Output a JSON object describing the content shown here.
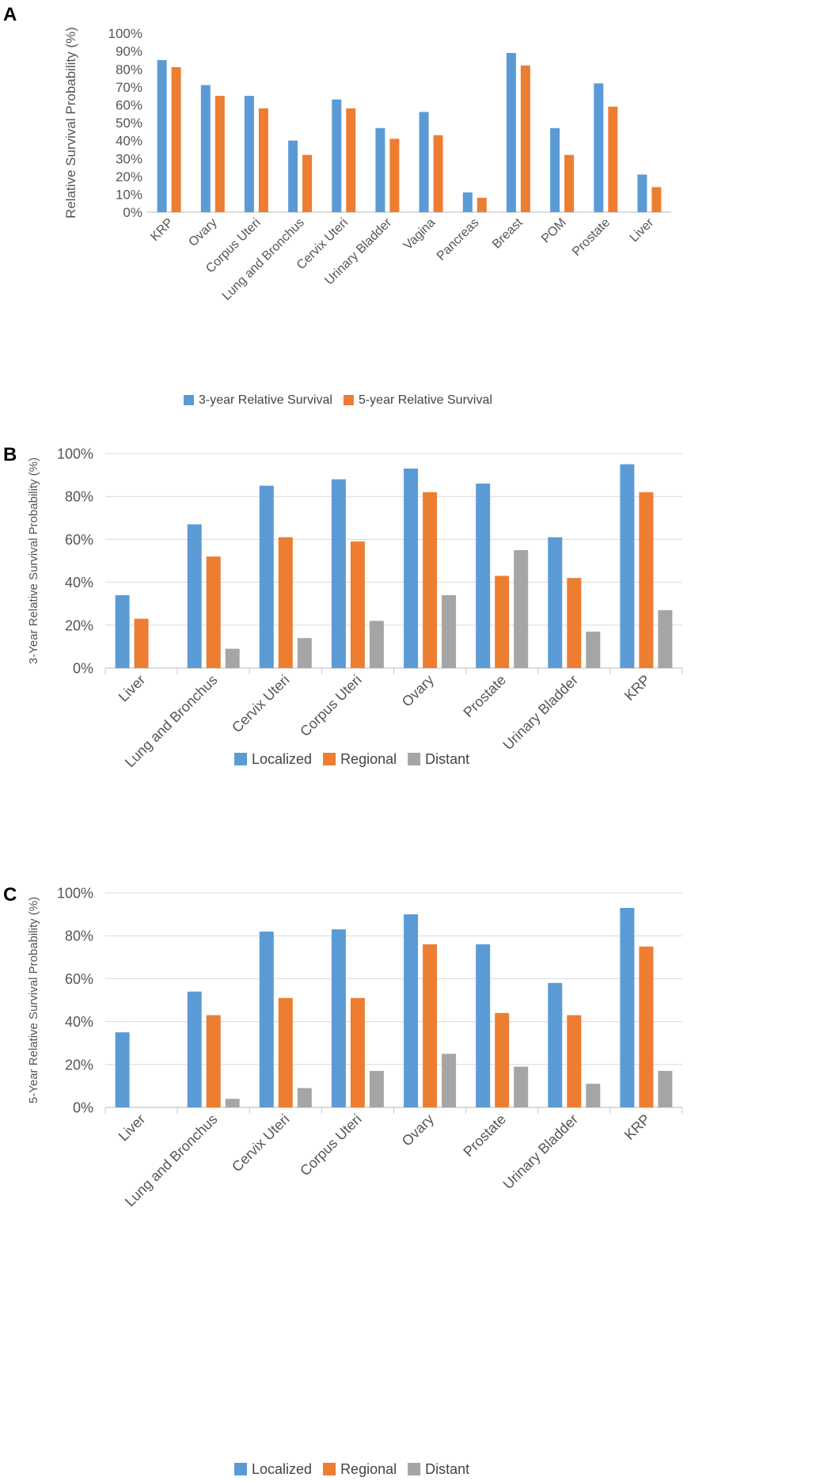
{
  "colors": {
    "s1": "#5b9bd5",
    "s2": "#ed7d31",
    "s3": "#a5a5a5"
  },
  "chart_data": [
    {
      "panel": "A",
      "type": "bar",
      "ylabel": "Relative Survival Probability (%)",
      "ylim": [
        0,
        100
      ],
      "yticks": [
        "0%",
        "10%",
        "20%",
        "30%",
        "40%",
        "50%",
        "60%",
        "70%",
        "80%",
        "90%",
        "100%"
      ],
      "categories": [
        "KRP",
        "Ovary",
        "Corpus Uteri",
        "Lung and Bronchus",
        "Cervix Uteri",
        "Urinary Bladder",
        "Vagina",
        "Pancreas",
        "Breast",
        "POM",
        "Prostate",
        "Liver"
      ],
      "series": [
        {
          "name": "3-year Relative Survival",
          "values": [
            85,
            71,
            65,
            40,
            63,
            47,
            56,
            11,
            89,
            47,
            72,
            21
          ]
        },
        {
          "name": "5-year Relative Survival",
          "values": [
            81,
            65,
            58,
            32,
            58,
            41,
            43,
            8,
            82,
            32,
            59,
            14
          ]
        }
      ],
      "legend": "bottom"
    },
    {
      "panel": "B",
      "type": "bar",
      "ylabel": "3-Year Relative Survival Probability (%)",
      "ylim": [
        0,
        100
      ],
      "yticks": [
        "0%",
        "20%",
        "40%",
        "60%",
        "80%",
        "100%"
      ],
      "categories": [
        "Liver",
        "Lung and Bronchus",
        "Cervix Uteri",
        "Corpus Uteri",
        "Ovary",
        "Prostate",
        "Urinary Bladder",
        "KRP"
      ],
      "series": [
        {
          "name": "Localized",
          "values": [
            34,
            67,
            85,
            88,
            93,
            86,
            61,
            95
          ]
        },
        {
          "name": "Regional",
          "values": [
            23,
            52,
            61,
            59,
            82,
            43,
            42,
            82
          ]
        },
        {
          "name": "Distant",
          "values": [
            0,
            9,
            14,
            22,
            34,
            55,
            17,
            27
          ]
        }
      ],
      "legend": "bottom"
    },
    {
      "panel": "C",
      "type": "bar",
      "ylabel": "5-Year Relative Survival Probability (%)",
      "ylim": [
        0,
        100
      ],
      "yticks": [
        "0%",
        "20%",
        "40%",
        "60%",
        "80%",
        "100%"
      ],
      "categories": [
        "Liver",
        "Lung and Bronchus",
        "Cervix Uteri",
        "Corpus Uteri",
        "Ovary",
        "Prostate",
        "Urinary Bladder",
        "KRP"
      ],
      "series": [
        {
          "name": "Localized",
          "values": [
            35,
            54,
            82,
            83,
            90,
            76,
            58,
            93
          ]
        },
        {
          "name": "Regional",
          "values": [
            0,
            43,
            51,
            51,
            76,
            44,
            43,
            75
          ]
        },
        {
          "name": "Distant",
          "values": [
            0,
            4,
            9,
            17,
            25,
            19,
            11,
            17
          ]
        }
      ],
      "legend": "bottom"
    }
  ]
}
